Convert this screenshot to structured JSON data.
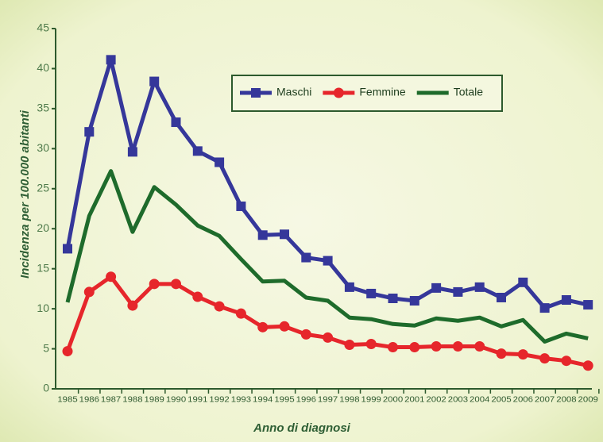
{
  "chart_data": {
    "type": "line",
    "y_label": "Incidenza per 100.000 abitanti",
    "x_label": "Anno di diagnosi",
    "categories": [
      "1985",
      "1986",
      "1987",
      "1988",
      "1989",
      "1990",
      "1991",
      "1992",
      "1993",
      "1994",
      "1995",
      "1996",
      "1997",
      "1998",
      "1999",
      "2000",
      "2001",
      "2002",
      "2003",
      "2004",
      "2005",
      "2006",
      "2007",
      "2008",
      "2009"
    ],
    "series": [
      {
        "name": "Maschi",
        "color": "#35379a",
        "marker": "square",
        "values": [
          17.5,
          32.1,
          41.1,
          29.6,
          38.4,
          33.3,
          29.7,
          28.3,
          22.8,
          19.2,
          19.3,
          16.4,
          16.0,
          12.7,
          11.9,
          11.3,
          11.0,
          12.6,
          12.1,
          12.7,
          11.4,
          13.3,
          10.1,
          11.1,
          10.5
        ]
      },
      {
        "name": "Femmine",
        "color": "#e6262b",
        "marker": "circle",
        "values": [
          4.7,
          12.1,
          14.0,
          10.4,
          13.1,
          13.1,
          11.5,
          10.3,
          9.4,
          7.7,
          7.8,
          6.8,
          6.4,
          5.5,
          5.6,
          5.2,
          5.2,
          5.3,
          5.3,
          5.3,
          4.4,
          4.3,
          3.8,
          3.5,
          2.9
        ]
      },
      {
        "name": "Totale",
        "color": "#1e6b2b",
        "marker": "none",
        "values": [
          10.8,
          21.6,
          27.2,
          19.6,
          25.2,
          23.0,
          20.4,
          19.1,
          16.2,
          13.4,
          13.5,
          11.4,
          11.0,
          8.9,
          8.7,
          8.1,
          7.9,
          8.8,
          8.5,
          8.9,
          7.8,
          8.6,
          5.9,
          6.9,
          6.3
        ]
      }
    ],
    "ylim": [
      0,
      45
    ],
    "yticks": [
      0,
      5,
      10,
      15,
      20,
      25,
      30,
      35,
      40,
      45
    ],
    "legend": "top-right"
  }
}
